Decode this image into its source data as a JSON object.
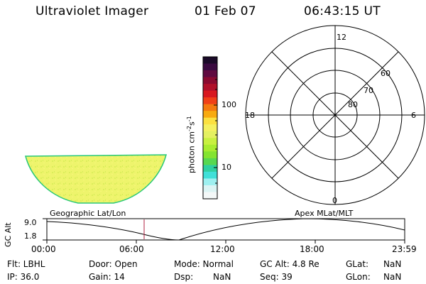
{
  "header": {
    "instrument": "Ultraviolet Imager",
    "date": "01 Feb 07",
    "time": "06:43:15 UT"
  },
  "colorbar": {
    "unit_label": "photon cm",
    "unit_exp1": "-2",
    "unit_mid": "s",
    "unit_exp2": "-1",
    "tick_100": "100",
    "tick_10": "10",
    "colors": [
      "#1a0a28",
      "#3a0a40",
      "#600a40",
      "#8a0a30",
      "#b0102a",
      "#d81820",
      "#f04018",
      "#f47a10",
      "#f8aa10",
      "#fbe040",
      "#f4f060",
      "#e4f060",
      "#c8f040",
      "#a8ec30",
      "#84e430",
      "#58d850",
      "#30d0a0",
      "#40e0d8",
      "#9ef0f0",
      "#dcf4f4",
      "#f4f8f8"
    ]
  },
  "map": {
    "fill_color": "#ecf26a",
    "edge_color": "#28c878"
  },
  "polar": {
    "mlt_12": "12",
    "mlt_18": "18",
    "mlt_6": "6",
    "mlt_0": "0",
    "lat_60": "60",
    "lat_70": "70",
    "lat_80": "80"
  },
  "timeline": {
    "left_label": "Geographic Lat/Lon",
    "right_label": "Apex MLat/MLT",
    "yaxis_label": "GC Alt",
    "ymax": "9.0",
    "ymin": "1.8",
    "ticks": [
      "00:00",
      "06:00",
      "12:00",
      "18:00",
      "23:59"
    ],
    "marker_color": "#b02040"
  },
  "info": {
    "flt": "Flt: LBHL",
    "ip": "IP: 36.0",
    "door": "Door: Open",
    "gain": "Gain: 14",
    "mode": "Mode: Normal",
    "dsp_label": "Dsp:",
    "dsp_value": "NaN",
    "gcalt": "GC Alt: 4.8 Re",
    "seq": "Seq: 39",
    "glat_label": "GLat:",
    "glat_value": "NaN",
    "glon_label": "GLon:",
    "glon_value": "NaN"
  }
}
